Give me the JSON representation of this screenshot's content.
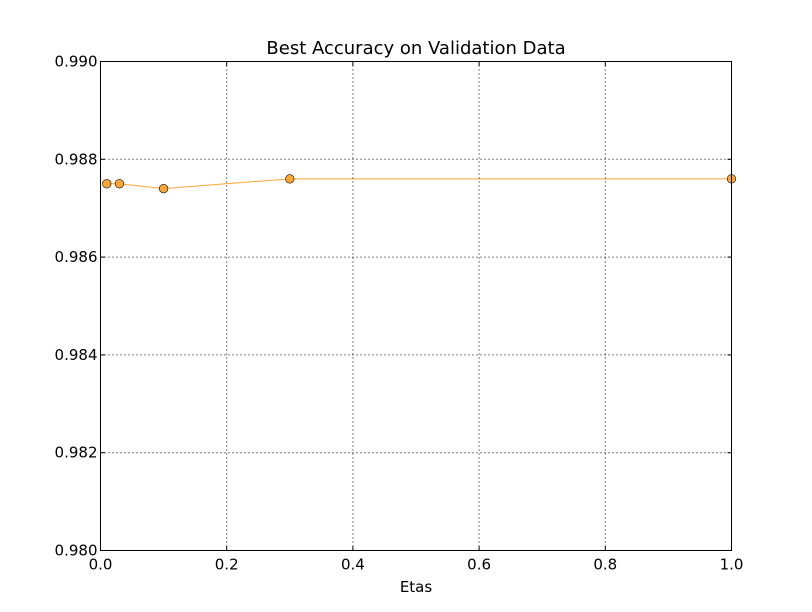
{
  "chart_data": {
    "type": "line",
    "title": "Best Accuracy on Validation Data",
    "xlabel": "Etas",
    "ylabel": "",
    "xlim": [
      0.0,
      1.0
    ],
    "ylim": [
      0.98,
      0.99
    ],
    "grid": true,
    "xticks": [
      "0.0",
      "0.2",
      "0.4",
      "0.6",
      "0.8",
      "1.0"
    ],
    "yticks": [
      "0.980",
      "0.982",
      "0.984",
      "0.986",
      "0.988",
      "0.990"
    ],
    "series": [
      {
        "color": "#FFA533",
        "marker": "circle",
        "x": [
          0.01,
          0.03,
          0.1,
          0.3,
          1.0
        ],
        "y": [
          0.9875,
          0.9875,
          0.9874,
          0.9876,
          0.9876
        ]
      }
    ]
  }
}
